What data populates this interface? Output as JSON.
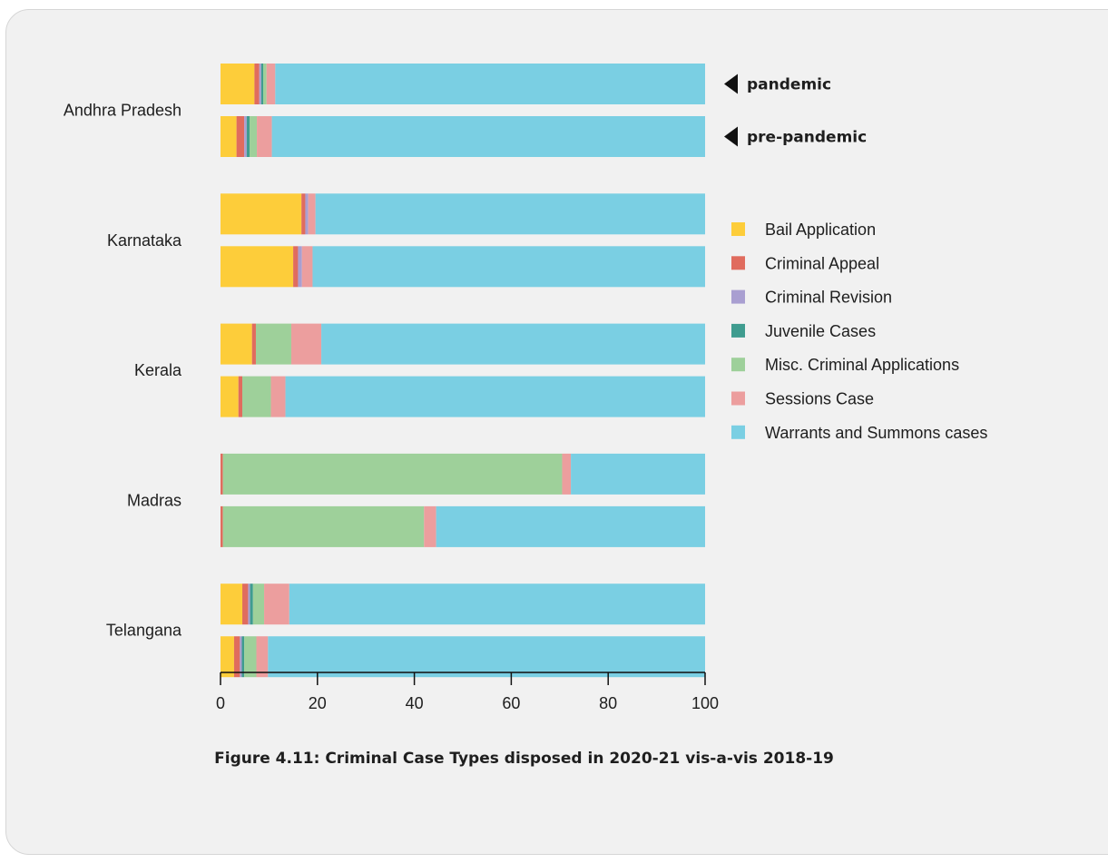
{
  "chart_data": {
    "type": "bar",
    "orientation": "horizontal",
    "stacked": true,
    "title": "Figure 4.11: Criminal Case Types disposed in 2020-21 vis-a-vis 2018-19",
    "categories": [
      "Andhra Pradesh",
      "Karnataka",
      "Kerala",
      "Madras",
      "Telangana"
    ],
    "periods": [
      "pandemic",
      "pre-pandemic"
    ],
    "xlim": [
      0,
      100
    ],
    "xticks": [
      0,
      20,
      40,
      60,
      80,
      100
    ],
    "legend_position": "right",
    "grid": false,
    "series": [
      {
        "name": "Bail Application",
        "color": "#fdcd3a",
        "pandemic": [
          7.0,
          16.7,
          6.5,
          0.0,
          4.5
        ],
        "pre_pandemic": [
          3.3,
          15.0,
          3.7,
          0.0,
          2.8
        ]
      },
      {
        "name": "Criminal Appeal",
        "color": "#e06c5e",
        "pandemic": [
          1.0,
          0.8,
          0.8,
          0.5,
          1.2
        ],
        "pre_pandemic": [
          1.6,
          1.0,
          0.8,
          0.5,
          1.2
        ]
      },
      {
        "name": "Criminal Revision",
        "color": "#a99fd1",
        "pandemic": [
          0.4,
          0.6,
          0.0,
          0.0,
          0.4
        ],
        "pre_pandemic": [
          0.5,
          0.8,
          0.0,
          0.0,
          0.4
        ]
      },
      {
        "name": "Juvenile Cases",
        "color": "#3f9c8f",
        "pandemic": [
          0.4,
          0.0,
          0.0,
          0.0,
          0.6
        ],
        "pre_pandemic": [
          0.6,
          0.0,
          0.0,
          0.0,
          0.5
        ]
      },
      {
        "name": "Misc. Criminal Applications",
        "color": "#9ed09a",
        "pandemic": [
          0.7,
          0.0,
          7.3,
          70.0,
          2.3
        ],
        "pre_pandemic": [
          1.5,
          0.0,
          5.9,
          41.5,
          2.5
        ]
      },
      {
        "name": "Sessions Case",
        "color": "#ec9e9e",
        "pandemic": [
          1.8,
          1.5,
          6.2,
          1.8,
          5.2
        ],
        "pre_pandemic": [
          3.1,
          2.2,
          3.0,
          2.5,
          2.4
        ]
      },
      {
        "name": "Warrants and Summons cases",
        "color": "#7acfe3",
        "pandemic": [
          88.7,
          80.4,
          79.2,
          27.7,
          85.8
        ],
        "pre_pandemic": [
          89.4,
          81.0,
          86.6,
          55.5,
          90.2
        ]
      }
    ]
  }
}
